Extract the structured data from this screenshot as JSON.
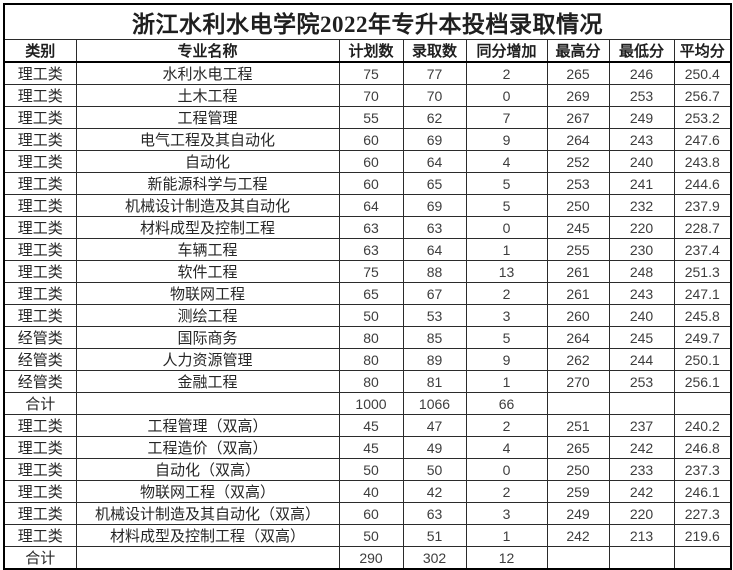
{
  "title": "浙江水利水电学院2022年专升本投档录取情况",
  "columns": [
    "类别",
    "专业名称",
    "计划数",
    "录取数",
    "同分增加",
    "最高分",
    "最低分",
    "平均分"
  ],
  "rows": [
    [
      "理工类",
      "水利水电工程",
      "75",
      "77",
      "2",
      "265",
      "246",
      "250.4"
    ],
    [
      "理工类",
      "土木工程",
      "70",
      "70",
      "0",
      "269",
      "253",
      "256.7"
    ],
    [
      "理工类",
      "工程管理",
      "55",
      "62",
      "7",
      "267",
      "249",
      "253.2"
    ],
    [
      "理工类",
      "电气工程及其自动化",
      "60",
      "69",
      "9",
      "264",
      "243",
      "247.6"
    ],
    [
      "理工类",
      "自动化",
      "60",
      "64",
      "4",
      "252",
      "240",
      "243.8"
    ],
    [
      "理工类",
      "新能源科学与工程",
      "60",
      "65",
      "5",
      "253",
      "241",
      "244.6"
    ],
    [
      "理工类",
      "机械设计制造及其自动化",
      "64",
      "69",
      "5",
      "250",
      "232",
      "237.9"
    ],
    [
      "理工类",
      "材料成型及控制工程",
      "63",
      "63",
      "0",
      "245",
      "220",
      "228.7"
    ],
    [
      "理工类",
      "车辆工程",
      "63",
      "64",
      "1",
      "255",
      "230",
      "237.4"
    ],
    [
      "理工类",
      "软件工程",
      "75",
      "88",
      "13",
      "261",
      "248",
      "251.3"
    ],
    [
      "理工类",
      "物联网工程",
      "65",
      "67",
      "2",
      "261",
      "243",
      "247.1"
    ],
    [
      "理工类",
      "测绘工程",
      "50",
      "53",
      "3",
      "260",
      "240",
      "245.8"
    ],
    [
      "经管类",
      "国际商务",
      "80",
      "85",
      "5",
      "264",
      "245",
      "249.7"
    ],
    [
      "经管类",
      "人力资源管理",
      "80",
      "89",
      "9",
      "262",
      "244",
      "250.1"
    ],
    [
      "经管类",
      "金融工程",
      "80",
      "81",
      "1",
      "270",
      "253",
      "256.1"
    ],
    [
      "合计",
      "",
      "1000",
      "1066",
      "66",
      "",
      "",
      ""
    ],
    [
      "理工类",
      "工程管理（双高）",
      "45",
      "47",
      "2",
      "251",
      "237",
      "240.2"
    ],
    [
      "理工类",
      "工程造价（双高）",
      "45",
      "49",
      "4",
      "265",
      "242",
      "246.8"
    ],
    [
      "理工类",
      "自动化（双高）",
      "50",
      "50",
      "0",
      "250",
      "233",
      "237.3"
    ],
    [
      "理工类",
      "物联网工程（双高）",
      "40",
      "42",
      "2",
      "259",
      "242",
      "246.1"
    ],
    [
      "理工类",
      "机械设计制造及其自动化（双高）",
      "60",
      "63",
      "3",
      "249",
      "220",
      "227.3"
    ],
    [
      "理工类",
      "材料成型及控制工程（双高）",
      "50",
      "51",
      "1",
      "242",
      "213",
      "219.6"
    ],
    [
      "合计",
      "",
      "290",
      "302",
      "12",
      "",
      "",
      ""
    ]
  ],
  "colors": {
    "border": "#2b2b2b",
    "outer_border": "#000000",
    "text": "#1f1f1f",
    "background": "#ffffff"
  }
}
